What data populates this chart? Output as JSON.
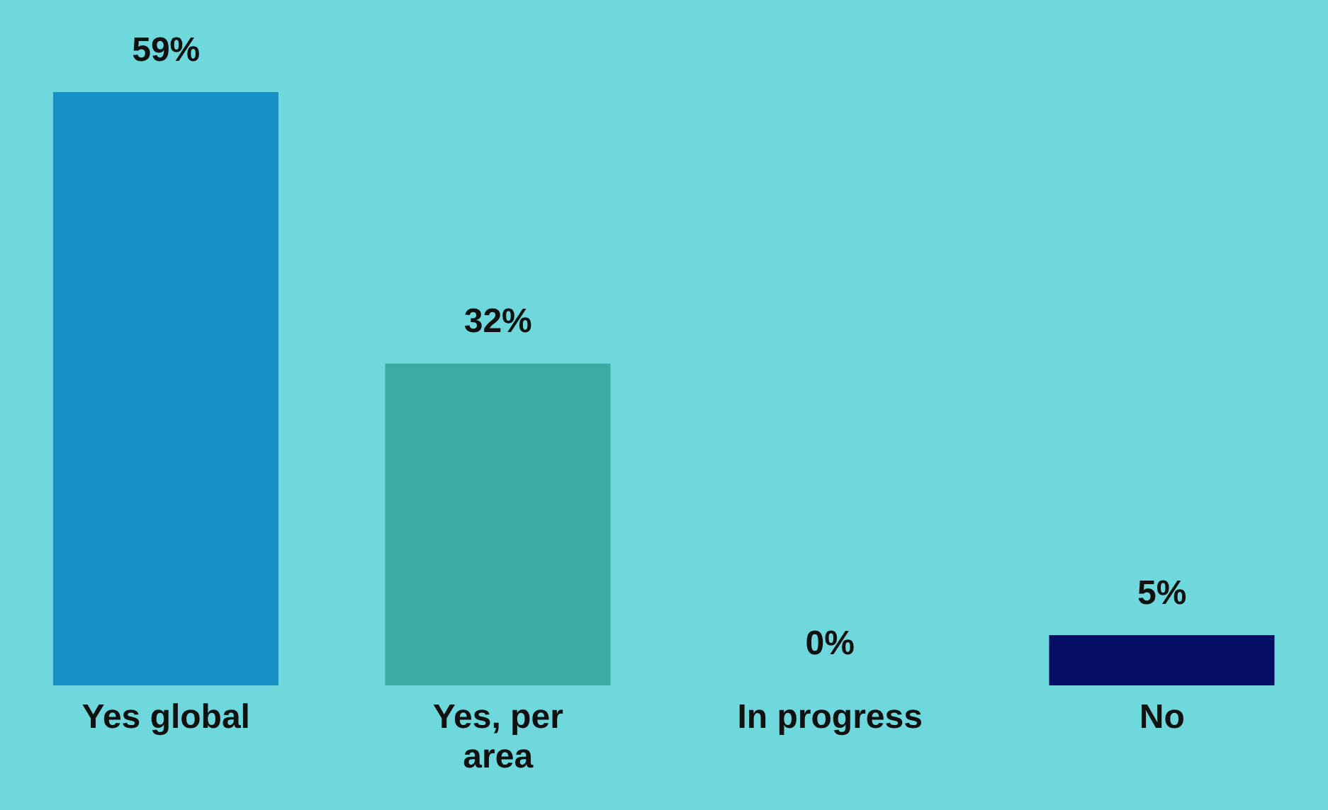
{
  "chart_data": {
    "type": "bar",
    "categories": [
      "Yes global",
      "Yes, per area",
      "In progress",
      "No"
    ],
    "values": [
      59,
      32,
      0,
      5
    ],
    "colors": [
      "#1591c6",
      "#3eaba3",
      "#ffffff",
      "#060f63"
    ],
    "value_labels": [
      "59%",
      "32%",
      "0%",
      "5%"
    ]
  }
}
